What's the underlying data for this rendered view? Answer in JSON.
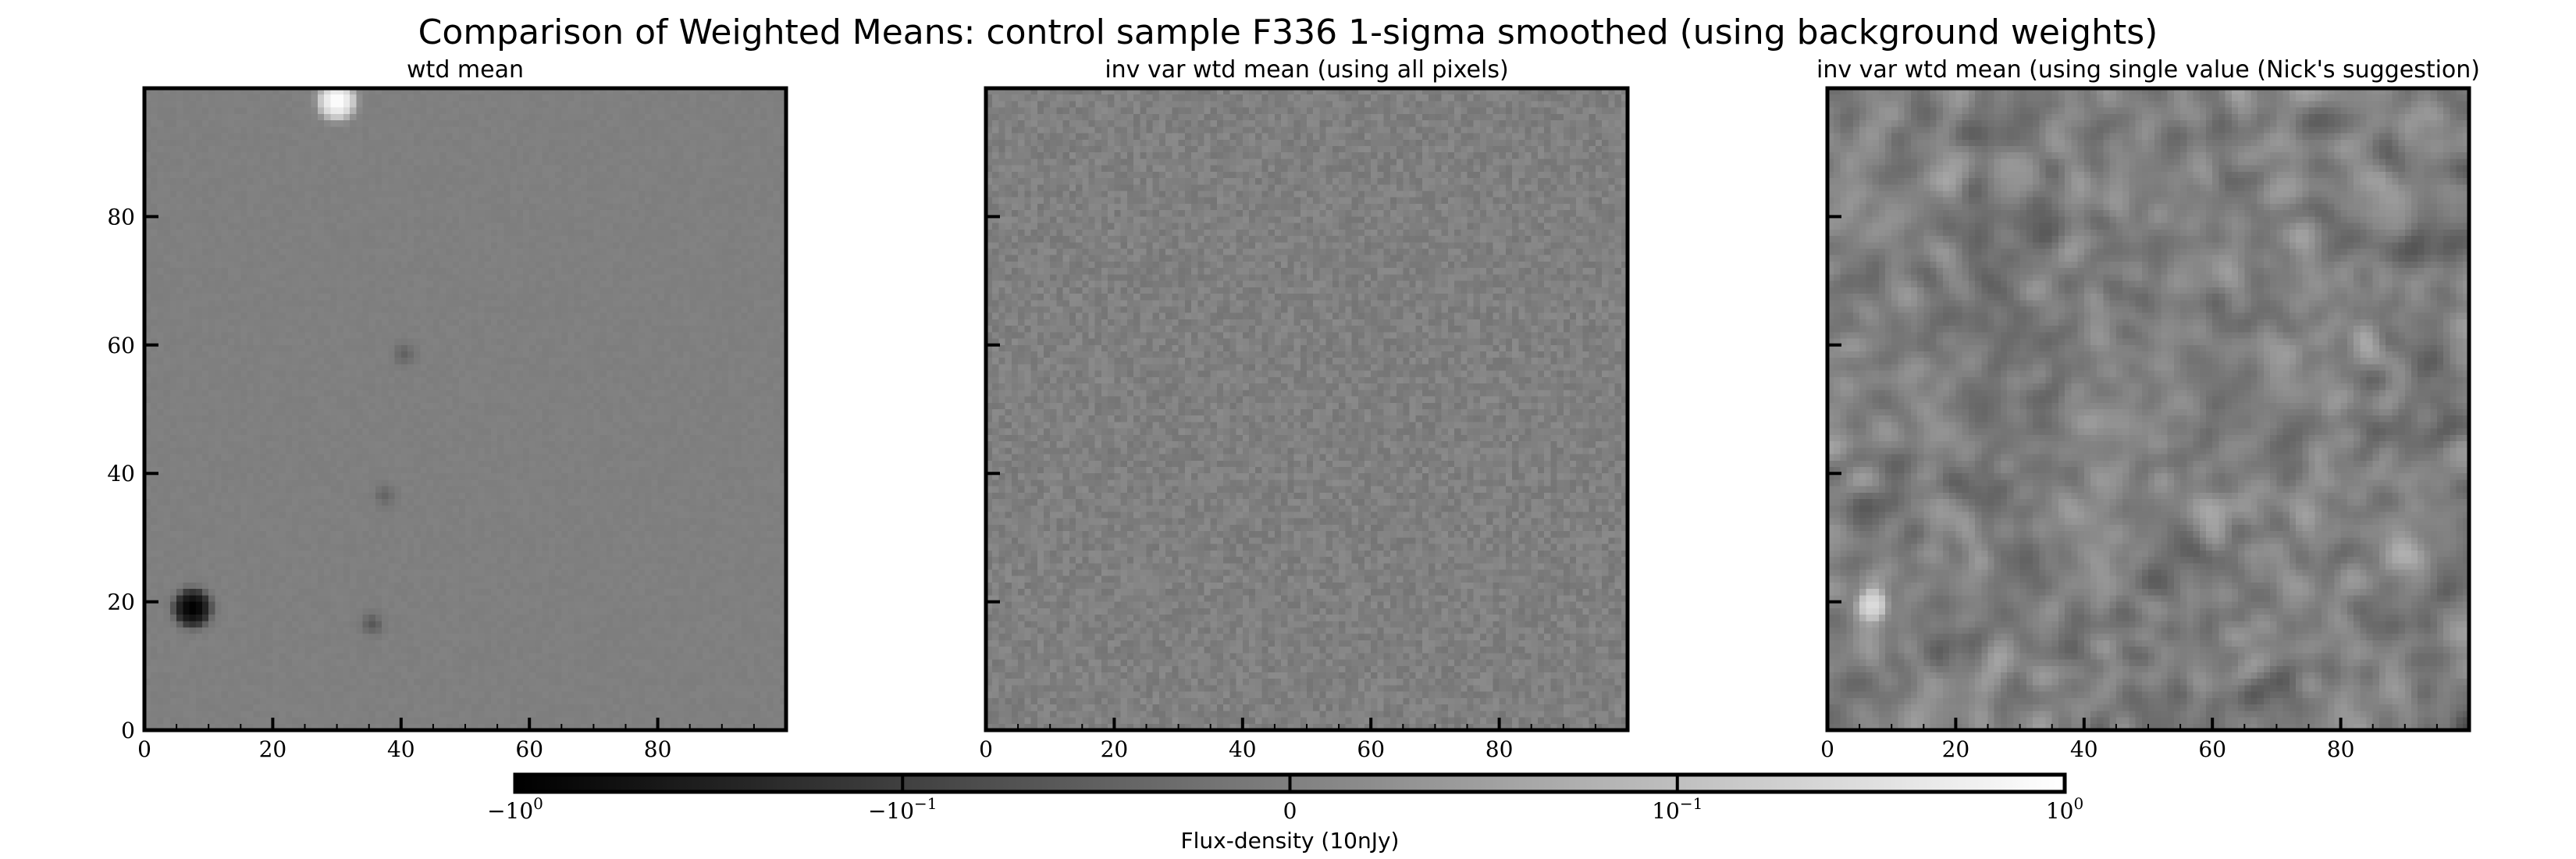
{
  "figure": {
    "title": "Comparison of Weighted Means: control sample F336 1-sigma smoothed (using background weights)"
  },
  "chart_data": [
    {
      "type": "heatmap",
      "title": "wtd mean",
      "xlim": [
        0,
        100
      ],
      "ylim": [
        0,
        100
      ],
      "x_ticks": [
        "0",
        "20",
        "40",
        "60",
        "80"
      ],
      "y_ticks": [
        "0",
        "20",
        "40",
        "60",
        "80"
      ],
      "base_value": 0.0,
      "noise": "low",
      "features": [
        {
          "x": 29.5,
          "y": 97.5,
          "value": 1.0,
          "kind": "bright-source"
        },
        {
          "x": 7,
          "y": 18.5,
          "value": -1.0,
          "kind": "dark-source"
        },
        {
          "x": 40,
          "y": 58,
          "value": -0.05,
          "kind": "faint-dark"
        },
        {
          "x": 35,
          "y": 16,
          "value": -0.06,
          "kind": "faint-dark"
        },
        {
          "x": 37,
          "y": 36,
          "value": -0.04,
          "kind": "faint-dark"
        }
      ]
    },
    {
      "type": "heatmap",
      "title": "inv var wtd mean (using all pixels)",
      "xlim": [
        0,
        100
      ],
      "ylim": [
        0,
        100
      ],
      "x_ticks": [
        "0",
        "20",
        "40",
        "60",
        "80"
      ],
      "y_ticks": [],
      "base_value": 0.0,
      "noise": "pixel"
    },
    {
      "type": "heatmap",
      "title": "inv var wtd mean (using single value (Nick's suggestion)",
      "xlim": [
        0,
        100
      ],
      "ylim": [
        0,
        100
      ],
      "x_ticks": [
        "0",
        "20",
        "40",
        "60",
        "80"
      ],
      "y_ticks": [],
      "base_value": 0.0,
      "noise": "smooth",
      "features": [
        {
          "x": 6.5,
          "y": 19,
          "value": 0.25,
          "kind": "bright-source"
        }
      ]
    }
  ],
  "colorbar": {
    "label": "Flux-density (10nJy)",
    "scale": "symlog",
    "range": [
      -1,
      1
    ],
    "colormap": "gray",
    "ticks": [
      {
        "value": -1.0,
        "base": "−10",
        "exp": "0"
      },
      {
        "value": -0.1,
        "base": "−10",
        "exp": "−1"
      },
      {
        "value": 0.0,
        "base": "0",
        "exp": ""
      },
      {
        "value": 0.1,
        "base": "10",
        "exp": "−1"
      },
      {
        "value": 1.0,
        "base": "10",
        "exp": "0"
      }
    ]
  }
}
